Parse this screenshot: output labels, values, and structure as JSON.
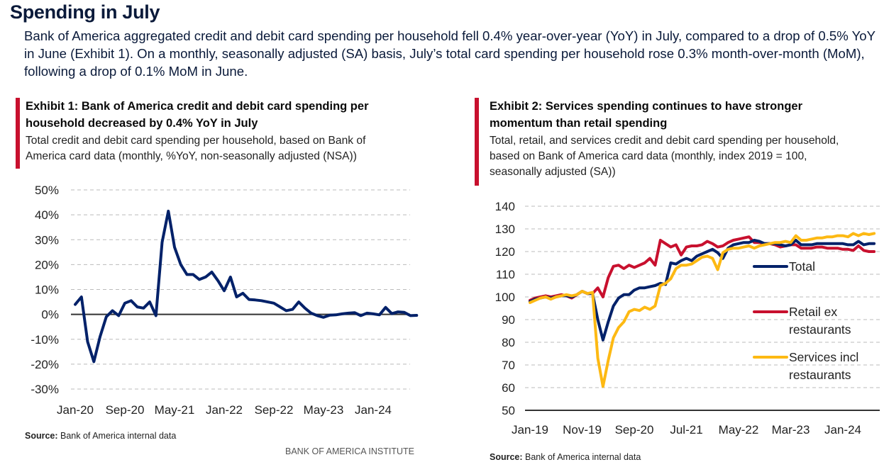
{
  "page": {
    "title": "Spending in July",
    "intro": "Bank of America aggregated credit and debit card spending per household fell 0.4% year-over-year (YoY) in July, compared to a drop of 0.5% YoY in June (Exhibit 1). On a monthly, seasonally adjusted (SA) basis, July’s total card spending per household rose 0.3% month-over-month (MoM), following a drop of 0.1% MoM in June.",
    "brand": "BANK OF AMERICA INSTITUTE"
  },
  "exhibit1": {
    "heading_line1": "Exhibit 1: Bank of America credit and debit card spending per",
    "heading_line2": "household decreased by 0.4% YoY in July",
    "sub_line1": "Total credit and debit card spending per household, based on Bank of",
    "sub_line2": "America card data (monthly, %YoY, non-seasonally adjusted (NSA))",
    "source_label": "Source:",
    "source_text": " Bank of America internal data"
  },
  "exhibit2": {
    "heading_line1": "Exhibit 2: Services spending continues to have stronger",
    "heading_line2": "momentum than retail spending",
    "sub_line1": "Total, retail, and services credit and debit card spending per household,",
    "sub_line2": "based on Bank of America card data (monthly, index 2019 = 100,",
    "sub_line3": "seasonally adjusted (SA))",
    "source_label": "Source:",
    "source_text": " Bank of America internal data"
  },
  "chart_data": [
    {
      "type": "line",
      "title": "Exhibit 1",
      "xlabel": "",
      "ylabel": "",
      "x_start": "Jan-20",
      "x_end": "Jul-24",
      "frequency": "monthly",
      "xtick_labels": [
        "Jan-20",
        "Sep-20",
        "May-21",
        "Jan-22",
        "Sep-22",
        "May-23",
        "Jan-24"
      ],
      "xtick_month_index": [
        0,
        8,
        16,
        24,
        32,
        40,
        48
      ],
      "ylim": [
        -30,
        50
      ],
      "yticks": [
        50,
        40,
        30,
        20,
        10,
        0,
        -10,
        -20,
        -30
      ],
      "ytick_labels": [
        "50%",
        "40%",
        "30%",
        "20%",
        "10%",
        "0%",
        "-10%",
        "-20%",
        "-30%"
      ],
      "grid": "horizontal-dashed",
      "series": [
        {
          "name": "Total card spending per household %YoY",
          "color": "#012169",
          "values": [
            4,
            7,
            -11,
            -19,
            -9,
            -1,
            1.5,
            -0.5,
            4.5,
            5.5,
            3,
            2.5,
            5,
            -0.5,
            29,
            41.5,
            27,
            20,
            16,
            16,
            14,
            15,
            17,
            13.5,
            9.5,
            15,
            7,
            8.5,
            6,
            5.8,
            5.5,
            5,
            4.5,
            3,
            1.5,
            2,
            5,
            2.5,
            0.5,
            -0.5,
            -1.2,
            -0.3,
            -0.2,
            0.2,
            0.5,
            0.7,
            -0.5,
            0.5,
            0.2,
            -0.2,
            2.8,
            0.3,
            1,
            0.8,
            -0.5,
            -0.4
          ]
        }
      ]
    },
    {
      "type": "line",
      "title": "Exhibit 2",
      "xlabel": "",
      "ylabel": "",
      "x_start": "Jan-19",
      "x_end": "Jul-24",
      "frequency": "monthly",
      "xtick_labels": [
        "Jan-19",
        "Nov-19",
        "Sep-20",
        "Jul-21",
        "May-22",
        "Mar-23",
        "Jan-24"
      ],
      "xtick_month_index": [
        0,
        10,
        20,
        30,
        40,
        50,
        60
      ],
      "ylim": [
        50,
        140
      ],
      "yticks": [
        140,
        130,
        120,
        110,
        100,
        90,
        80,
        70,
        60,
        50
      ],
      "ytick_labels": [
        "140",
        "130",
        "120",
        "110",
        "100",
        "90",
        "80",
        "70",
        "60",
        "50"
      ],
      "grid": "horizontal-dashed",
      "legend": "right",
      "series": [
        {
          "name": "Total",
          "color": "#012169",
          "values": [
            98,
            99,
            99.5,
            100,
            99.5,
            100,
            100.5,
            100.5,
            100,
            101,
            102.5,
            101.5,
            101.5,
            90,
            81,
            89,
            96,
            99.5,
            101,
            101,
            103,
            104,
            104,
            104.5,
            105,
            106,
            105.5,
            115,
            114.5,
            116,
            117,
            116,
            118,
            119,
            120,
            121,
            119.5,
            117,
            121.5,
            123,
            123.5,
            124,
            124,
            125,
            124.5,
            123.5,
            123.5,
            123.5,
            123,
            122.5,
            123,
            125,
            123,
            123,
            123,
            123.5,
            123.5,
            123.5,
            123.5,
            123.5,
            123.5,
            123,
            123,
            124.5,
            123,
            123.5,
            123.5
          ]
        },
        {
          "name": "Retail ex restaurants",
          "color": "#c8102e",
          "values": [
            98.5,
            99.5,
            100,
            100.5,
            100,
            100.5,
            101,
            100.5,
            99.5,
            101,
            102.5,
            101.5,
            101.5,
            104,
            100,
            108.5,
            113.5,
            114,
            112.5,
            114,
            113,
            114,
            115,
            117,
            114,
            125,
            123.5,
            122,
            123,
            118.5,
            122,
            122.5,
            122.5,
            123,
            124.5,
            123.5,
            122,
            122.5,
            124,
            125,
            125.5,
            126,
            126.5,
            124,
            124,
            123.5,
            123.5,
            123,
            122,
            122.5,
            123,
            123,
            121.5,
            121.5,
            121.5,
            122,
            122,
            121.5,
            121.5,
            121.5,
            121,
            121,
            120.5,
            122.5,
            120.5,
            120,
            120
          ]
        },
        {
          "name": "Services incl restaurants",
          "color": "#fdb913",
          "values": [
            97.5,
            98.5,
            99.5,
            100,
            99,
            100,
            100.5,
            101,
            100.5,
            101,
            102.5,
            101.5,
            102,
            73,
            60.5,
            72,
            82,
            86.5,
            89,
            93.5,
            94.5,
            94,
            95.5,
            94.5,
            96,
            105,
            106,
            108,
            112.5,
            114,
            114,
            114.5,
            116,
            117.5,
            118,
            117,
            112,
            119.5,
            121,
            121.5,
            121.5,
            122,
            122.5,
            121.5,
            122.5,
            123,
            123.5,
            124,
            124,
            124.5,
            124,
            127,
            125,
            125,
            125.5,
            126,
            126,
            126.5,
            126.5,
            127,
            127,
            126.5,
            128,
            127,
            128,
            127.5,
            128
          ]
        }
      ]
    }
  ]
}
